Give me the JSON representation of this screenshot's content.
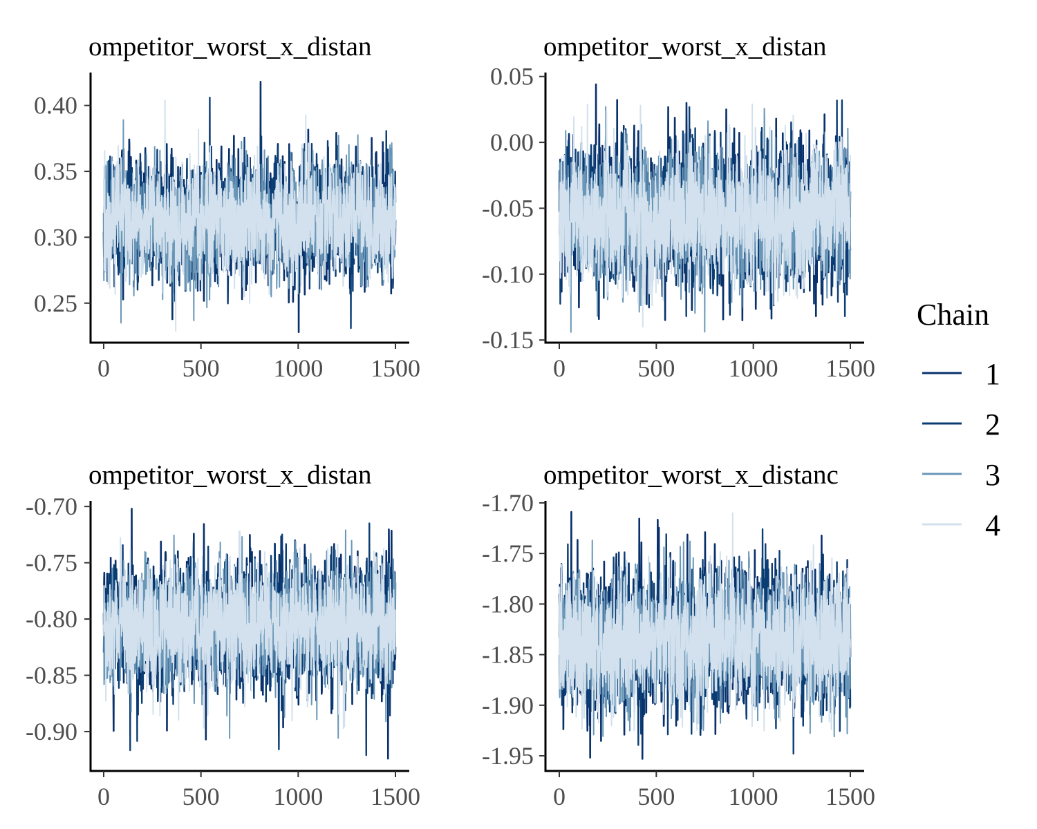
{
  "chart_data": [
    {
      "type": "line",
      "title": "ompetitor_worst_x_distan",
      "xlabel": "",
      "ylabel": "",
      "xlim": [
        0,
        1500
      ],
      "ylim": [
        0.22,
        0.425
      ],
      "x_ticks": [
        "0",
        "500",
        "1000",
        "1500"
      ],
      "x_tick_values": [
        0,
        500,
        1000,
        1500
      ],
      "y_ticks": [
        "0.25",
        "0.30",
        "0.35",
        "0.40"
      ],
      "y_tick_values": [
        0.25,
        0.3,
        0.35,
        0.4
      ],
      "iterations": 1500,
      "series": [
        {
          "name": "1",
          "center": 0.313,
          "sd": 0.022,
          "min": 0.228,
          "max": 0.418
        },
        {
          "name": "2",
          "center": 0.313,
          "sd": 0.021,
          "min": 0.231,
          "max": 0.406
        },
        {
          "name": "3",
          "center": 0.313,
          "sd": 0.021,
          "min": 0.235,
          "max": 0.389
        },
        {
          "name": "4",
          "center": 0.313,
          "sd": 0.021,
          "min": 0.229,
          "max": 0.404
        }
      ]
    },
    {
      "type": "line",
      "title": "ompetitor_worst_x_distan",
      "xlabel": "",
      "ylabel": "",
      "xlim": [
        0,
        1500
      ],
      "ylim": [
        -0.152,
        0.053
      ],
      "x_ticks": [
        "0",
        "500",
        "1000",
        "1500"
      ],
      "x_tick_values": [
        0,
        500,
        1000,
        1500
      ],
      "y_ticks": [
        "-0.15",
        "-0.10",
        "-0.05",
        "0.00",
        "0.05"
      ],
      "y_tick_values": [
        -0.15,
        -0.1,
        -0.05,
        0.0,
        0.05
      ],
      "iterations": 1500,
      "series": [
        {
          "name": "1",
          "center": -0.055,
          "sd": 0.026,
          "min": -0.135,
          "max": 0.044
        },
        {
          "name": "2",
          "center": -0.055,
          "sd": 0.025,
          "min": -0.132,
          "max": 0.032
        },
        {
          "name": "3",
          "center": -0.055,
          "sd": 0.025,
          "min": -0.144,
          "max": 0.027
        },
        {
          "name": "4",
          "center": -0.055,
          "sd": 0.025,
          "min": -0.14,
          "max": 0.029
        }
      ]
    },
    {
      "type": "line",
      "title": "ompetitor_worst_x_distan",
      "xlabel": "",
      "ylabel": "",
      "xlim": [
        0,
        1500
      ],
      "ylim": [
        -0.935,
        -0.695
      ],
      "x_ticks": [
        "0",
        "500",
        "1000",
        "1500"
      ],
      "x_tick_values": [
        0,
        500,
        1000,
        1500
      ],
      "y_ticks": [
        "-0.90",
        "-0.85",
        "-0.80",
        "-0.75",
        "-0.70"
      ],
      "y_tick_values": [
        -0.9,
        -0.85,
        -0.8,
        -0.75,
        -0.7
      ],
      "iterations": 1500,
      "series": [
        {
          "name": "1",
          "center": -0.807,
          "sd": 0.028,
          "min": -0.924,
          "max": -0.702
        },
        {
          "name": "2",
          "center": -0.807,
          "sd": 0.027,
          "min": -0.921,
          "max": -0.715
        },
        {
          "name": "3",
          "center": -0.807,
          "sd": 0.027,
          "min": -0.906,
          "max": -0.721
        },
        {
          "name": "4",
          "center": -0.807,
          "sd": 0.027,
          "min": -0.897,
          "max": -0.722
        }
      ]
    },
    {
      "type": "line",
      "title": "ompetitor_worst_x_distanc",
      "xlabel": "",
      "ylabel": "",
      "xlim": [
        0,
        1500
      ],
      "ylim": [
        -1.965,
        -1.698
      ],
      "x_ticks": [
        "0",
        "500",
        "1000",
        "1500"
      ],
      "x_tick_values": [
        0,
        500,
        1000,
        1500
      ],
      "y_ticks": [
        "-1.95",
        "-1.90",
        "-1.85",
        "-1.80",
        "-1.75",
        "-1.70"
      ],
      "y_tick_values": [
        -1.95,
        -1.9,
        -1.85,
        -1.8,
        -1.75,
        -1.7
      ],
      "iterations": 1500,
      "series": [
        {
          "name": "1",
          "center": -1.836,
          "sd": 0.033,
          "min": -1.953,
          "max": -1.709
        },
        {
          "name": "2",
          "center": -1.836,
          "sd": 0.032,
          "min": -1.948,
          "max": -1.726
        },
        {
          "name": "3",
          "center": -1.836,
          "sd": 0.032,
          "min": -1.931,
          "max": -1.737
        },
        {
          "name": "4",
          "center": -1.836,
          "sd": 0.032,
          "min": -1.925,
          "max": -1.71
        }
      ]
    }
  ],
  "legend": {
    "title": "Chain",
    "placement": "right",
    "items": [
      {
        "label": "1",
        "color": "#08306b"
      },
      {
        "label": "2",
        "color": "#0b3d75"
      },
      {
        "label": "3",
        "color": "#6a97b8"
      },
      {
        "label": "4",
        "color": "#d2e1ed"
      }
    ]
  },
  "colors": {
    "chain_1": "#08306b",
    "chain_2": "#0b3d75",
    "chain_3": "#6a97b8",
    "chain_4": "#d2e1ed",
    "axis": "#000000",
    "tick_text": "#4d4d4d",
    "background": "#ffffff"
  }
}
